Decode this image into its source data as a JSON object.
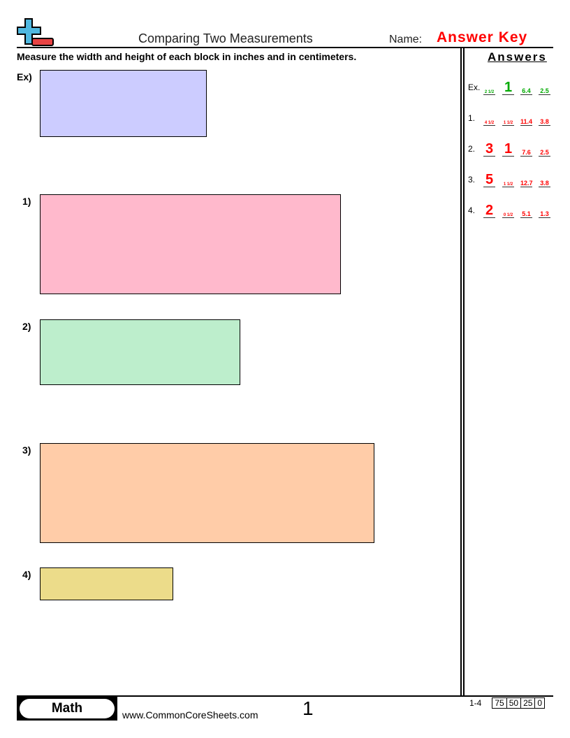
{
  "header": {
    "title": "Comparing Two Measurements",
    "name_label": "Name:",
    "name_value": "Answer Key"
  },
  "instructions": "Measure the width and height of each block in inches and in centimeters.",
  "problems": [
    {
      "label": "Ex)",
      "color": "#ccccff"
    },
    {
      "label": "1)",
      "color": "#ffb9cc"
    },
    {
      "label": "2)",
      "color": "#bdeecc"
    },
    {
      "label": "3)",
      "color": "#ffcca8"
    },
    {
      "label": "4)",
      "color": "#ecdc8a"
    }
  ],
  "answers": {
    "heading": "Answers",
    "example_color": "#00aa00",
    "answer_color": "#ff0000",
    "rows": [
      {
        "label": "Ex.",
        "values": [
          "2 1/2",
          "1",
          "6.4",
          "2.5"
        ]
      },
      {
        "label": "1.",
        "values": [
          "4 1/2",
          "1 1/2",
          "11.4",
          "3.8"
        ]
      },
      {
        "label": "2.",
        "values": [
          "3",
          "1",
          "7.6",
          "2.5"
        ]
      },
      {
        "label": "3.",
        "values": [
          "5",
          "1 1/2",
          "12.7",
          "3.8"
        ]
      },
      {
        "label": "4.",
        "values": [
          "2",
          "0 1/2",
          "5.1",
          "1.3"
        ]
      }
    ]
  },
  "footer": {
    "badge": "Math",
    "site": "www.CommonCoreSheets.com",
    "page": "1",
    "score_range": "1-4",
    "scores": [
      "75",
      "50",
      "25",
      "0"
    ]
  }
}
